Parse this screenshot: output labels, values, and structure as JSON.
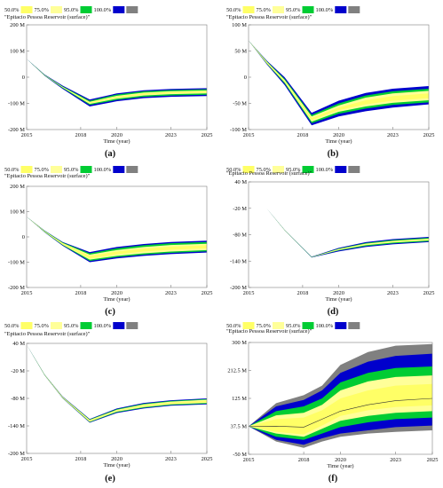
{
  "legend_colors": {
    "50.0%": "#ffff66",
    "75.0%": "#ffff99",
    "95.0%": "#00cc33",
    "100.0%": "#0000cc",
    "gray": "#808080"
  },
  "chart_data": [
    {
      "id": "a",
      "type": "area",
      "caption": "(a)",
      "title": "\"Epitacio Pessoa Reservoir (surface)\"",
      "xlabel": "Time (year)",
      "legend": [
        "50.0%",
        "75.0%",
        "95.0%",
        "100.0%"
      ],
      "x_ticks": [
        2015,
        2018,
        2020,
        2023,
        2025
      ],
      "y_ticks": [
        200,
        100,
        0,
        -100,
        -200
      ],
      "y_tick_labels": [
        "200 M",
        "100 M",
        "0",
        "-100 M",
        "-200 M"
      ],
      "xlim": [
        2015,
        2025
      ],
      "ylim": [
        -200,
        200
      ],
      "x": [
        2015,
        2016,
        2017,
        2018.5,
        2020,
        2021.5,
        2023,
        2025
      ],
      "bands": {
        "b100": {
          "lo": [
            70,
            5,
            -45,
            -112,
            -92,
            -80,
            -75,
            -72
          ],
          "hi": [
            70,
            10,
            -32,
            -85,
            -62,
            -50,
            -45,
            -42
          ]
        },
        "b95": {
          "lo": [
            70,
            6,
            -42,
            -106,
            -87,
            -75,
            -70,
            -67
          ],
          "hi": [
            70,
            9,
            -35,
            -90,
            -66,
            -54,
            -49,
            -46
          ]
        },
        "b75": {
          "lo": [
            70,
            7,
            -40,
            -102,
            -82,
            -70,
            -65,
            -62
          ],
          "hi": [
            70,
            8,
            -37,
            -94,
            -71,
            -59,
            -54,
            -51
          ]
        },
        "b50": {
          "lo": [
            70,
            7.2,
            -39,
            -100,
            -79,
            -67,
            -62,
            -59
          ],
          "hi": [
            70,
            7.8,
            -38,
            -96,
            -74,
            -62,
            -57,
            -54
          ]
        }
      }
    },
    {
      "id": "b",
      "type": "area",
      "caption": "(b)",
      "title": "\"Epitacio Pessoa Reservoir (surface)\"",
      "xlabel": "Time (year)",
      "legend": [
        "50.0%",
        "75.0%",
        "95.0%",
        "100.0%"
      ],
      "x_ticks": [
        2015,
        2018,
        2020,
        2023,
        2025
      ],
      "y_ticks": [
        100,
        50,
        0,
        -50,
        -100
      ],
      "y_tick_labels": [
        "100 M",
        "50 M",
        "0",
        "-50 M",
        "-100 M"
      ],
      "xlim": [
        2015,
        2025
      ],
      "ylim": [
        -100,
        100
      ],
      "x": [
        2015,
        2016,
        2017,
        2018.5,
        2020,
        2021.5,
        2023,
        2025
      ],
      "bands": {
        "b100": {
          "lo": [
            70,
            25,
            -15,
            -92,
            -75,
            -65,
            -58,
            -52
          ],
          "hi": [
            70,
            32,
            0,
            -68,
            -45,
            -30,
            -22,
            -17
          ]
        },
        "b95": {
          "lo": [
            70,
            26,
            -12,
            -88,
            -70,
            -60,
            -53,
            -48
          ],
          "hi": [
            70,
            31,
            -3,
            -72,
            -50,
            -35,
            -27,
            -22
          ]
        },
        "b75": {
          "lo": [
            70,
            27,
            -10,
            -85,
            -66,
            -56,
            -49,
            -44
          ],
          "hi": [
            70,
            30,
            -5,
            -75,
            -54,
            -39,
            -31,
            -26
          ]
        },
        "b50": {
          "lo": [
            70,
            27.5,
            -8.5,
            -82,
            -63,
            -52,
            -45,
            -40
          ],
          "hi": [
            70,
            29.5,
            -6.5,
            -78,
            -58,
            -44,
            -36,
            -31
          ]
        }
      }
    },
    {
      "id": "c",
      "type": "area",
      "caption": "(c)",
      "title": "\"Epitacio Pessoa Reservoir (surface)\"",
      "xlabel": "Time (year)",
      "legend": [
        "50.0%",
        "75.0%",
        "95.0%",
        "100.0%"
      ],
      "x_ticks": [
        2015,
        2018,
        2020,
        2023,
        2025
      ],
      "y_ticks": [
        200,
        100,
        0,
        -100,
        -200
      ],
      "y_tick_labels": [
        "200 M",
        "100 M",
        "0",
        "-100 M",
        "-200 M"
      ],
      "xlim": [
        2015,
        2025
      ],
      "ylim": [
        -200,
        200
      ],
      "x": [
        2015,
        2016,
        2017,
        2018.5,
        2020,
        2021.5,
        2023,
        2025
      ],
      "bands": {
        "b100": {
          "lo": [
            80,
            18,
            -35,
            -100,
            -85,
            -75,
            -68,
            -62
          ],
          "hi": [
            80,
            25,
            -20,
            -60,
            -40,
            -28,
            -20,
            -15
          ]
        },
        "b95": {
          "lo": [
            80,
            19,
            -33,
            -95,
            -80,
            -70,
            -63,
            -57
          ],
          "hi": [
            80,
            24,
            -22,
            -65,
            -45,
            -33,
            -25,
            -20
          ]
        },
        "b75": {
          "lo": [
            80,
            20,
            -31,
            -90,
            -75,
            -65,
            -58,
            -52
          ],
          "hi": [
            80,
            23,
            -24,
            -70,
            -52,
            -40,
            -32,
            -27
          ]
        },
        "b50": {
          "lo": [
            80,
            20.5,
            -29.5,
            -85,
            -69,
            -58,
            -51,
            -45
          ],
          "hi": [
            80,
            22.5,
            -25.5,
            -75,
            -58,
            -46,
            -38,
            -33
          ]
        }
      }
    },
    {
      "id": "d",
      "type": "area",
      "caption": "(d)",
      "title": "\"Epitacio Pessoa Reservoir (surface)\"",
      "xlabel": "Time (year)",
      "legend": [
        "50.0%",
        "75.0%",
        "95.0%",
        "100.0%"
      ],
      "x_ticks": [
        2015,
        2018,
        2020,
        2023,
        2025
      ],
      "y_ticks": [
        40,
        -20,
        -80,
        -140,
        -200
      ],
      "y_tick_labels": [
        "40 M",
        "-20 M",
        "-80 M",
        "-140 M",
        "-200 M"
      ],
      "xlim": [
        2015,
        2025
      ],
      "ylim": [
        -200,
        40
      ],
      "x": [
        2015,
        2016,
        2017,
        2018.5,
        2020,
        2021.5,
        2023,
        2025
      ],
      "bands": {
        "b100": {
          "lo": [
            40,
            -20,
            -70,
            -132,
            -118,
            -108,
            -102,
            -97
          ],
          "hi": [
            40,
            -20,
            -69,
            -130,
            -110,
            -97,
            -90,
            -85
          ]
        },
        "b95": {
          "lo": [
            40,
            -20,
            -70,
            -131.5,
            -116,
            -106,
            -100,
            -95
          ],
          "hi": [
            40,
            -20,
            -69.2,
            -130.4,
            -111.5,
            -99,
            -92,
            -87
          ]
        },
        "b75": {
          "lo": [
            40,
            -20,
            -69.8,
            -131.2,
            -115,
            -104,
            -98,
            -93
          ],
          "hi": [
            40,
            -20,
            -69.3,
            -130.6,
            -112.5,
            -100.5,
            -94,
            -89
          ]
        },
        "b50": {
          "lo": [
            40,
            -20,
            -69.6,
            -131,
            -114,
            -103,
            -97,
            -92
          ],
          "hi": [
            40,
            -20,
            -69.4,
            -130.8,
            -113,
            -102,
            -95.5,
            -90.5
          ]
        }
      }
    },
    {
      "id": "e",
      "type": "area",
      "caption": "(e)",
      "title": "\"Epitacio Pessoa Reservoir (surface)\"",
      "xlabel": "Time (year)",
      "legend": [
        "50.0%",
        "75.0%",
        "95.0%",
        "100.0%"
      ],
      "x_ticks": [
        2015,
        2018,
        2020,
        2023,
        2025
      ],
      "y_ticks": [
        40,
        -20,
        -80,
        -140,
        -200
      ],
      "y_tick_labels": [
        "40 M",
        "-20 M",
        "-80 M",
        "-140 M",
        "-200 M"
      ],
      "xlim": [
        2015,
        2025
      ],
      "ylim": [
        -200,
        40
      ],
      "x": [
        2015,
        2016,
        2017,
        2018.5,
        2020,
        2021.5,
        2023,
        2025
      ],
      "bands": {
        "b100": {
          "lo": [
            37,
            -30,
            -80,
            -133,
            -112,
            -102,
            -96,
            -93
          ],
          "hi": [
            37,
            -28,
            -76,
            -125,
            -102,
            -90,
            -84,
            -80
          ]
        },
        "b95": {
          "lo": [
            37,
            -29.7,
            -79.5,
            -132,
            -110.5,
            -100.5,
            -94.5,
            -91.5
          ],
          "hi": [
            37,
            -28.3,
            -76.5,
            -126,
            -103.5,
            -91.5,
            -85.5,
            -81.5
          ]
        },
        "b75": {
          "lo": [
            37,
            -29.4,
            -79,
            -131,
            -109,
            -99,
            -93,
            -90
          ],
          "hi": [
            37,
            -28.6,
            -77,
            -127,
            -105,
            -93,
            -87,
            -83
          ]
        },
        "b50": {
          "lo": [
            37,
            -29.2,
            -78.6,
            -130,
            -107.5,
            -97.5,
            -91.5,
            -88.5
          ],
          "hi": [
            37,
            -28.8,
            -77.4,
            -128,
            -106.5,
            -95,
            -89,
            -85
          ]
        }
      }
    },
    {
      "id": "f",
      "type": "area",
      "caption": "(f)",
      "title": "\"Epitacio Pessoa Reservoir (surface)\"",
      "xlabel": "Time (year)",
      "legend": [
        "50.0%",
        "75.0%",
        "95.0%",
        "100.0%"
      ],
      "x_ticks": [
        2015,
        2018,
        2020,
        2023,
        2025
      ],
      "y_ticks": [
        300,
        212.5,
        125,
        37.5,
        -50
      ],
      "y_tick_labels": [
        "300 M",
        "212.5 M",
        "125 M",
        "37.5 M",
        "-50 M"
      ],
      "xlim": [
        2015,
        2025
      ],
      "ylim": [
        -50,
        300
      ],
      "x": [
        2015,
        2016.5,
        2018,
        2019,
        2020,
        2021.5,
        2023,
        2025
      ],
      "gray": {
        "lo": [
          37.5,
          -10,
          -30,
          -10,
          5,
          15,
          20,
          25
        ],
        "hi": [
          37.5,
          110,
          135,
          165,
          230,
          270,
          290,
          295
        ]
      },
      "bands": {
        "b100": {
          "lo": [
            37.5,
            -5,
            -20,
            0,
            15,
            25,
            35,
            40
          ],
          "hi": [
            37.5,
            100,
            120,
            150,
            205,
            240,
            258,
            265
          ]
        },
        "b95": {
          "lo": [
            37.5,
            5,
            -5,
            15,
            35,
            50,
            60,
            65
          ],
          "hi": [
            37.5,
            85,
            100,
            125,
            175,
            205,
            220,
            225
          ]
        },
        "b75": {
          "lo": [
            37.5,
            15,
            5,
            30,
            55,
            70,
            80,
            85
          ],
          "hi": [
            37.5,
            72,
            80,
            105,
            150,
            178,
            192,
            197
          ]
        },
        "b50": {
          "lo": [
            37.5,
            20,
            12,
            40,
            70,
            88,
            98,
            103
          ],
          "hi": [
            37.5,
            60,
            65,
            88,
            125,
            150,
            165,
            170
          ]
        }
      },
      "mean": [
        37.5,
        38,
        35,
        60,
        85,
        105,
        118,
        125
      ]
    }
  ]
}
